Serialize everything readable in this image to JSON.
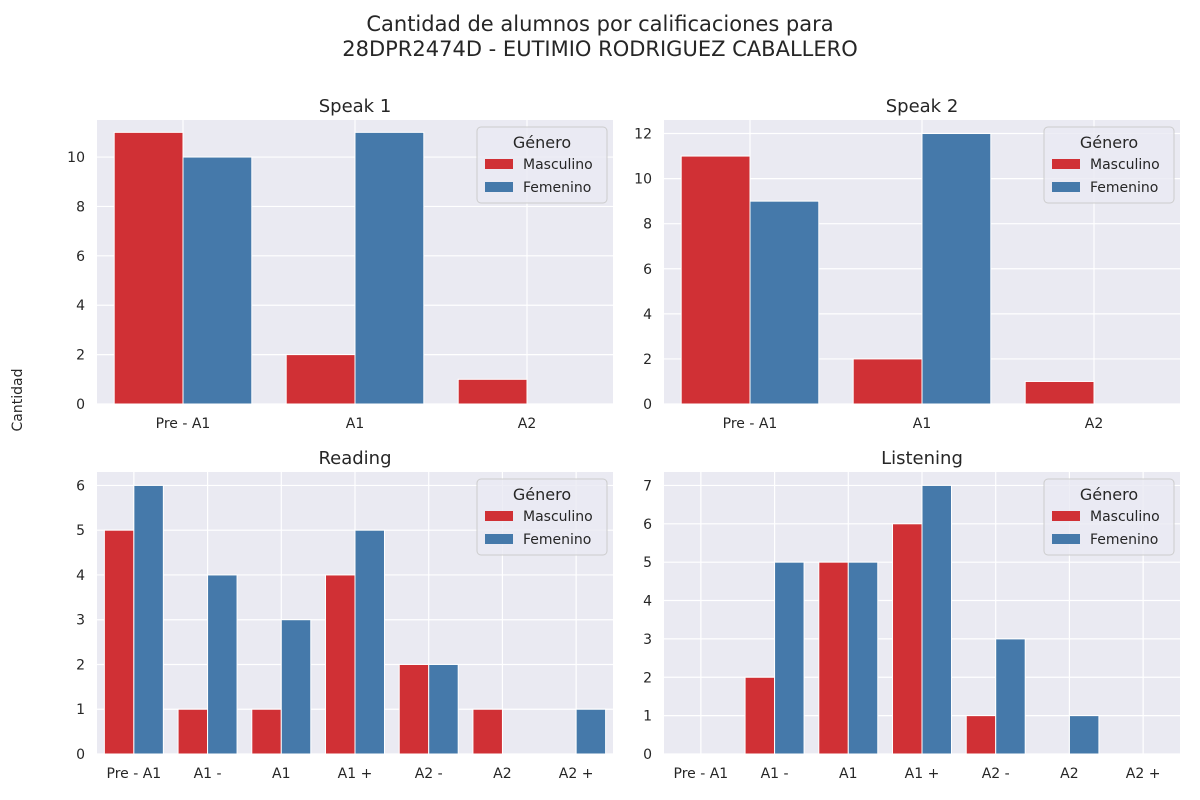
{
  "figure": {
    "title_line1": "Cantidad de alumnos por calificaciones para",
    "title_line2": "28DPR2474D - EUTIMIO RODRIGUEZ CABALLERO",
    "shared_ylabel": "Cantidad"
  },
  "colors": {
    "Masculino": "#d03035",
    "Femenino": "#4579aa",
    "plot_bg": "#eaeaf2",
    "grid": "#ffffff"
  },
  "chart_data": [
    {
      "type": "bar",
      "title": "Speak 1",
      "categories": [
        "Pre - A1",
        "A1",
        "A2"
      ],
      "series": [
        {
          "name": "Masculino",
          "values": [
            11,
            2,
            1
          ]
        },
        {
          "name": "Femenino",
          "values": [
            10,
            11,
            0
          ]
        }
      ],
      "ylim": [
        0,
        11.5
      ],
      "yticks": [
        0,
        2,
        4,
        6,
        8,
        10
      ],
      "legend": {
        "title": "Género",
        "placement": "top-right"
      },
      "grid": true
    },
    {
      "type": "bar",
      "title": "Speak 2",
      "categories": [
        "Pre - A1",
        "A1",
        "A2"
      ],
      "series": [
        {
          "name": "Masculino",
          "values": [
            11,
            2,
            1
          ]
        },
        {
          "name": "Femenino",
          "values": [
            9,
            12,
            0
          ]
        }
      ],
      "ylim": [
        0,
        12.6
      ],
      "yticks": [
        0,
        2,
        4,
        6,
        8,
        10,
        12
      ],
      "legend": {
        "title": "Género",
        "placement": "top-right"
      },
      "grid": true
    },
    {
      "type": "bar",
      "title": "Reading",
      "categories": [
        "Pre - A1",
        "A1 -",
        "A1",
        "A1 +",
        "A2 -",
        "A2",
        "A2 +"
      ],
      "series": [
        {
          "name": "Masculino",
          "values": [
            5,
            1,
            1,
            4,
            2,
            1,
            0
          ]
        },
        {
          "name": "Femenino",
          "values": [
            6,
            4,
            3,
            5,
            2,
            0,
            1
          ]
        }
      ],
      "ylim": [
        0,
        6.3
      ],
      "yticks": [
        0,
        1,
        2,
        3,
        4,
        5,
        6
      ],
      "legend": {
        "title": "Género",
        "placement": "top-right"
      },
      "grid": true
    },
    {
      "type": "bar",
      "title": "Listening",
      "categories": [
        "Pre - A1",
        "A1 -",
        "A1",
        "A1 +",
        "A2 -",
        "A2",
        "A2 +"
      ],
      "series": [
        {
          "name": "Masculino",
          "values": [
            0,
            2,
            5,
            6,
            1,
            0,
            0
          ]
        },
        {
          "name": "Femenino",
          "values": [
            0,
            5,
            5,
            7,
            3,
            1,
            0
          ]
        }
      ],
      "ylim": [
        0,
        7.35
      ],
      "yticks": [
        0,
        1,
        2,
        3,
        4,
        5,
        6,
        7
      ],
      "legend": {
        "title": "Género",
        "placement": "top-right"
      },
      "grid": true
    }
  ]
}
